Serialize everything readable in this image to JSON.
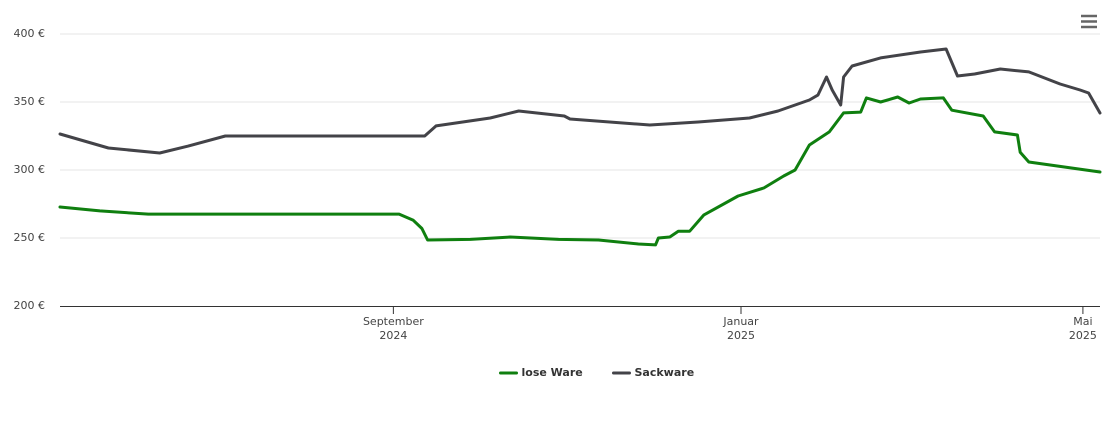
{
  "chart_data": {
    "type": "line",
    "xlim": [
      "2024-05-07",
      "2025-05-07"
    ],
    "xticks": [
      {
        "value": "2024-09-01",
        "label": "September\n2024"
      },
      {
        "value": "2025-01-01",
        "label": "Januar\n2025"
      },
      {
        "value": "2025-05-01",
        "label": "Mai\n2025"
      }
    ],
    "ylim": [
      200,
      400
    ],
    "yticks": [
      {
        "value": 200,
        "label": "200 €"
      },
      {
        "value": 250,
        "label": "250 €"
      },
      {
        "value": 300,
        "label": "300 €"
      },
      {
        "value": 350,
        "label": "350 €"
      },
      {
        "value": 400,
        "label": "400 €"
      }
    ],
    "grid": true,
    "legend": "bottom",
    "series": [
      {
        "name": "lose Ware",
        "color": "#0f7f0f",
        "x": [
          "2024-05-07",
          "2024-05-21",
          "2024-06-07",
          "2024-09-03",
          "2024-09-08",
          "2024-09-11",
          "2024-09-13",
          "2024-09-28",
          "2024-10-12",
          "2024-10-29",
          "2024-11-12",
          "2024-11-26",
          "2024-12-02",
          "2024-12-03",
          "2024-12-07",
          "2024-12-10",
          "2024-12-14",
          "2024-12-19",
          "2024-12-31",
          "2025-01-09",
          "2025-01-16",
          "2025-01-20",
          "2025-01-25",
          "2025-02-01",
          "2025-02-06",
          "2025-02-12",
          "2025-02-14",
          "2025-02-19",
          "2025-02-25",
          "2025-03-01",
          "2025-03-05",
          "2025-03-13",
          "2025-03-16",
          "2025-03-27",
          "2025-03-31",
          "2025-04-08",
          "2025-04-09",
          "2025-04-12",
          "2025-05-07"
        ],
        "values": [
          272.8,
          269.9,
          267.6,
          267.6,
          263.0,
          257.0,
          248.5,
          249.0,
          250.7,
          249.0,
          248.5,
          245.6,
          244.9,
          250.0,
          250.7,
          255.0,
          255.0,
          267.0,
          280.9,
          286.8,
          295.6,
          300.0,
          318.4,
          328.0,
          342.0,
          342.6,
          353.0,
          350.0,
          353.7,
          349.3,
          352.2,
          353.0,
          344.0,
          339.7,
          328.0,
          325.7,
          313.0,
          305.9,
          298.5
        ]
      },
      {
        "name": "Sackware",
        "color": "#434348",
        "x": [
          "2024-05-07",
          "2024-05-24",
          "2024-06-11",
          "2024-06-21",
          "2024-07-04",
          "2024-09-12",
          "2024-09-16",
          "2024-10-05",
          "2024-10-15",
          "2024-10-31",
          "2024-11-02",
          "2024-11-30",
          "2024-12-17",
          "2025-01-04",
          "2025-01-14",
          "2025-01-25",
          "2025-01-28",
          "2025-01-31",
          "2025-02-02",
          "2025-02-05",
          "2025-02-06",
          "2025-02-09",
          "2025-02-19",
          "2025-03-05",
          "2025-03-14",
          "2025-03-18",
          "2025-03-24",
          "2025-04-02",
          "2025-04-12",
          "2025-04-23",
          "2025-04-30",
          "2025-05-03",
          "2025-05-07"
        ],
        "values": [
          326.5,
          316.2,
          312.5,
          317.6,
          325.0,
          325.0,
          332.4,
          338.2,
          343.4,
          339.7,
          337.5,
          333.1,
          335.3,
          338.2,
          343.4,
          351.5,
          355.1,
          368.4,
          358.8,
          347.8,
          368.4,
          376.5,
          382.4,
          386.8,
          389.0,
          369.1,
          370.6,
          374.3,
          372.1,
          363.2,
          358.8,
          356.6,
          341.9
        ]
      }
    ]
  }
}
